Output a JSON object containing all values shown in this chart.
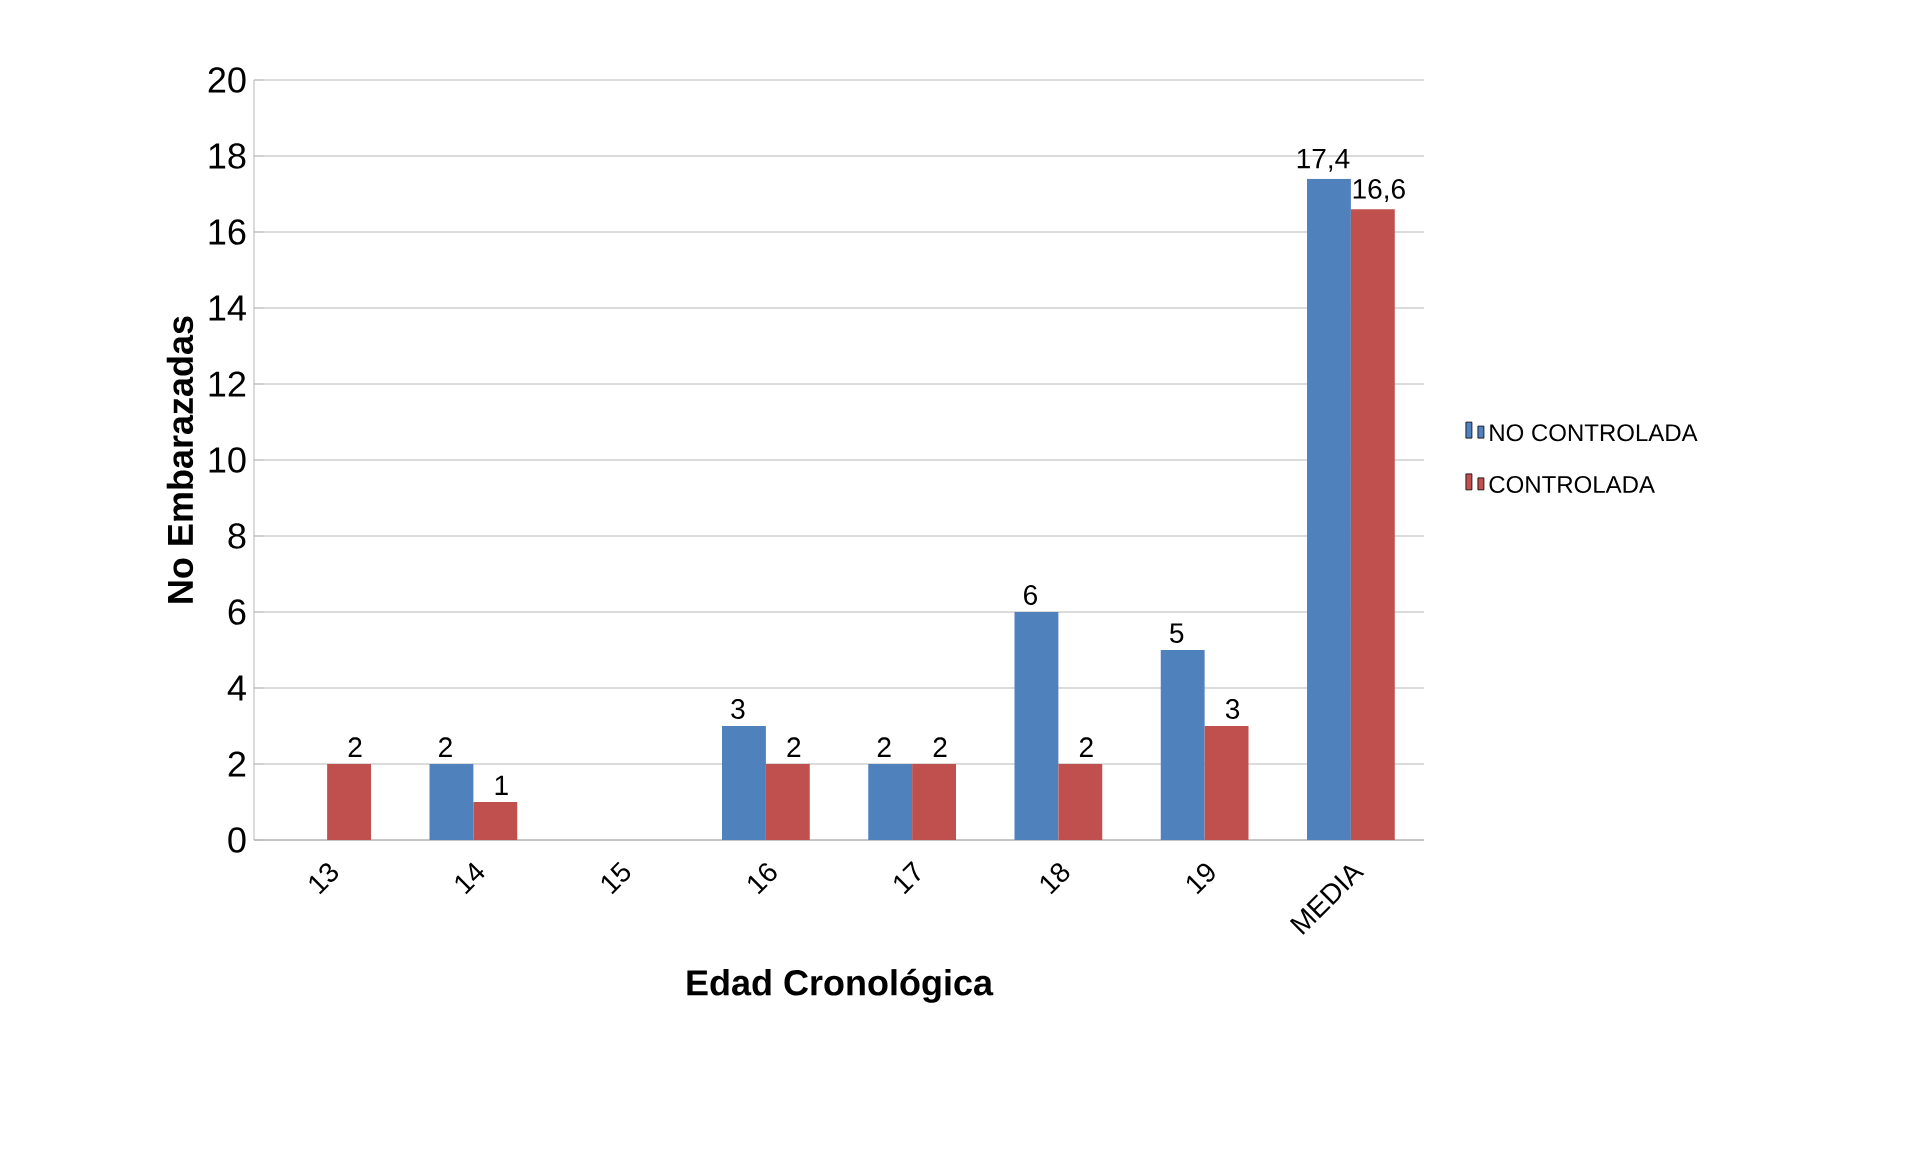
{
  "chart_data": {
    "type": "bar",
    "xlabel": "Edad Cronológica",
    "ylabel": "No Embarazadas",
    "categories": [
      "13",
      "14",
      "15",
      "16",
      "17",
      "18",
      "19",
      "MEDIA"
    ],
    "series": [
      {
        "name": "NO CONTROLADA",
        "color": "#4f81bd",
        "values": [
          null,
          2,
          null,
          3,
          2,
          6,
          5,
          17.4
        ],
        "value_labels": [
          null,
          "2",
          null,
          "3",
          "2",
          "6",
          "5",
          "17,4"
        ]
      },
      {
        "name": "CONTROLADA",
        "color": "#c0504d",
        "values": [
          2,
          1,
          null,
          2,
          2,
          2,
          3,
          16.6
        ],
        "value_labels": [
          "2",
          "1",
          null,
          "2",
          "2",
          "2",
          "3",
          "16,6"
        ]
      }
    ],
    "ylim": [
      0,
      20
    ],
    "yticks": [
      0,
      2,
      4,
      6,
      8,
      10,
      12,
      14,
      16,
      18,
      20
    ],
    "grid": "y",
    "legend": "right"
  }
}
